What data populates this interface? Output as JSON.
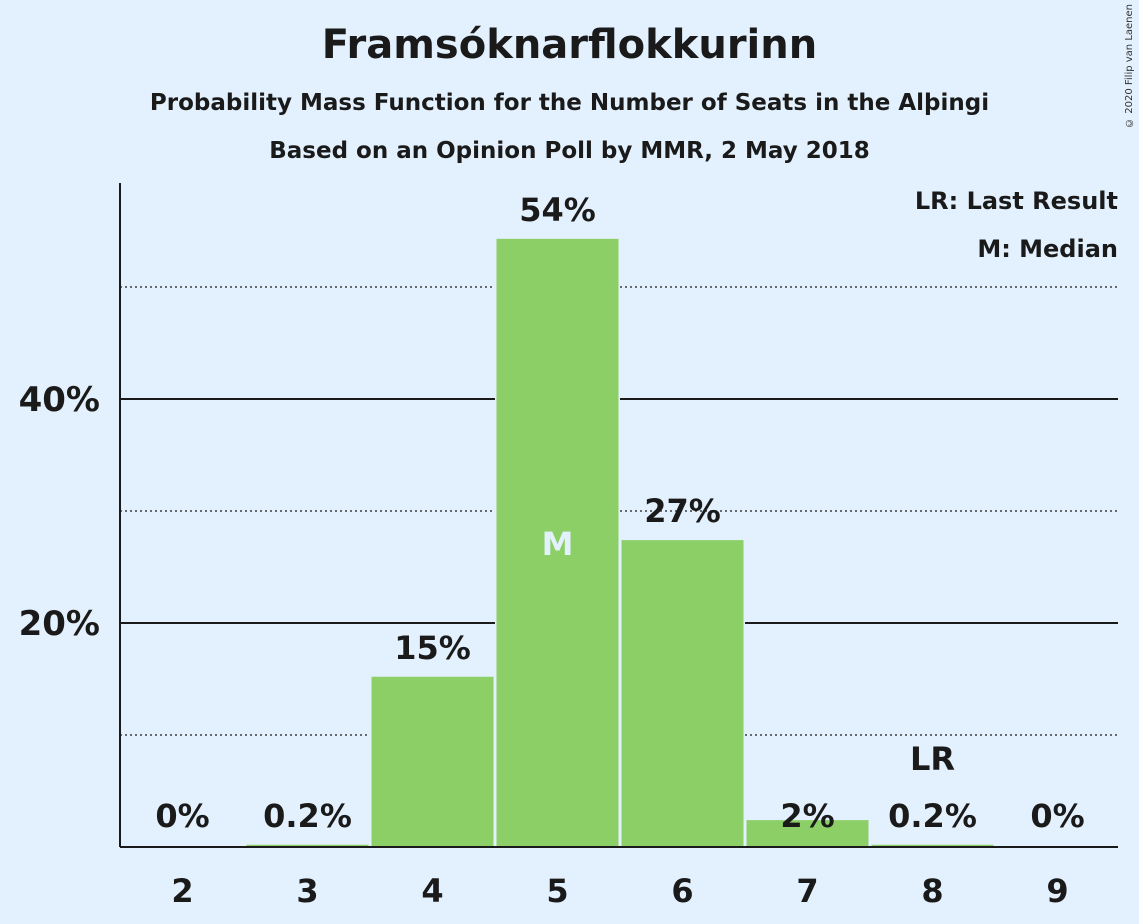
{
  "chart_data": {
    "type": "bar",
    "title": "Framsóknarflokkurinn",
    "subtitle": "Probability Mass Function for the Number of Seats in the Alþingi",
    "source_line": "Based on an Opinion Poll by MMR, 2 May 2018",
    "copyright": "© 2020 Filip van Laenen",
    "categories": [
      "2",
      "3",
      "4",
      "5",
      "6",
      "7",
      "8",
      "9"
    ],
    "values": [
      0,
      0.2,
      15.2,
      54.3,
      27.4,
      2.4,
      0.2,
      0
    ],
    "value_labels": [
      "0%",
      "0.2%",
      "15%",
      "54%",
      "27%",
      "2%",
      "0.2%",
      "0%"
    ],
    "ylim": [
      0,
      60
    ],
    "yticks": [
      20,
      40
    ],
    "ytick_labels": [
      "20%",
      "40%"
    ],
    "gridlines_solid": [
      20,
      40
    ],
    "gridlines_dotted": [
      10,
      30,
      50
    ],
    "median_category": "5",
    "median_marker": "M",
    "last_result_category": "8",
    "last_result_marker": "LR",
    "legend": [
      "LR: Last Result",
      "M: Median"
    ],
    "legend_position": "top-right",
    "colors": {
      "bar": "#8ccf67",
      "background": "#e3f1fe",
      "text": "#1a1a1a",
      "median_label": "#e3f1fe"
    }
  }
}
